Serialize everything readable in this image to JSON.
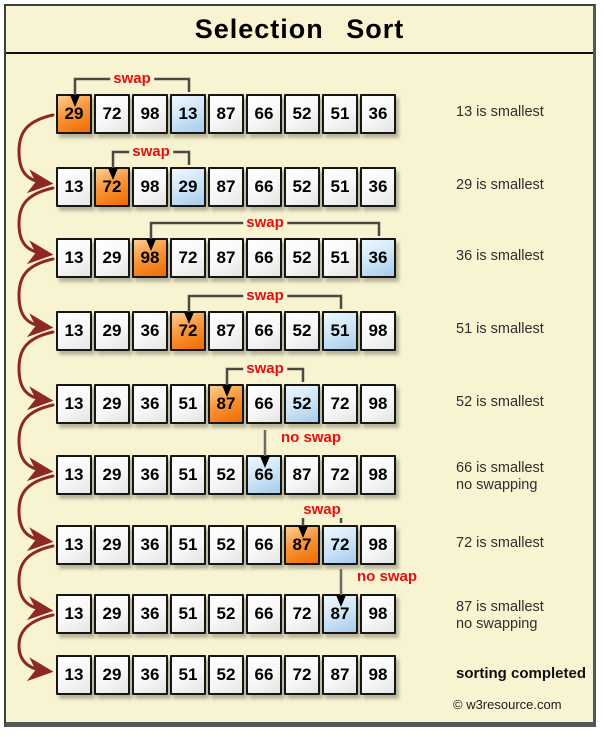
{
  "title": "Selection Sort",
  "footer": {
    "copyright": "© w3resource.com"
  },
  "labels": {
    "swap": "swap",
    "no_swap": "no swap"
  },
  "colors": {
    "background": "#f8f4d2",
    "swap_text_red": "#e50f0f",
    "bracket_gray": "#4a4a42",
    "connector_maroon": "#8e2823",
    "cell_orange": "#ef6a00",
    "cell_blue": "#a6cbec",
    "cell_border": "#161616"
  },
  "rows": [
    {
      "values": [
        "29",
        "72",
        "98",
        "13",
        "87",
        "66",
        "52",
        "51",
        "36"
      ],
      "orange": 0,
      "blue": 3,
      "action": "swap",
      "swap_from": 0,
      "swap_to": 3,
      "label": "13 is smallest"
    },
    {
      "values": [
        "13",
        "72",
        "98",
        "29",
        "87",
        "66",
        "52",
        "51",
        "36"
      ],
      "orange": 1,
      "blue": 3,
      "action": "swap",
      "swap_from": 1,
      "swap_to": 3,
      "label": "29 is smallest"
    },
    {
      "values": [
        "13",
        "29",
        "98",
        "72",
        "87",
        "66",
        "52",
        "51",
        "36"
      ],
      "orange": 2,
      "blue": 8,
      "action": "swap",
      "swap_from": 2,
      "swap_to": 8,
      "label": "36 is smallest"
    },
    {
      "values": [
        "13",
        "29",
        "36",
        "72",
        "87",
        "66",
        "52",
        "51",
        "98"
      ],
      "orange": 3,
      "blue": 7,
      "action": "swap",
      "swap_from": 3,
      "swap_to": 7,
      "label": "51 is smallest"
    },
    {
      "values": [
        "13",
        "29",
        "36",
        "51",
        "87",
        "66",
        "52",
        "72",
        "98"
      ],
      "orange": 4,
      "blue": 6,
      "action": "swap",
      "swap_from": 4,
      "swap_to": 6,
      "label": "52 is smallest"
    },
    {
      "values": [
        "13",
        "29",
        "36",
        "51",
        "52",
        "66",
        "87",
        "72",
        "98"
      ],
      "blue": 5,
      "action": "no_swap",
      "no_swap_at": 5,
      "label": "66 is smallest",
      "label2": "no swapping"
    },
    {
      "values": [
        "13",
        "29",
        "36",
        "51",
        "52",
        "66",
        "87",
        "72",
        "98"
      ],
      "orange": 6,
      "blue": 7,
      "action": "swap",
      "swap_from": 6,
      "swap_to": 7,
      "label": "72 is smallest"
    },
    {
      "values": [
        "13",
        "29",
        "36",
        "51",
        "52",
        "66",
        "72",
        "87",
        "98"
      ],
      "blue": 7,
      "action": "no_swap",
      "no_swap_at": 7,
      "label": "87 is smallest",
      "label2": "no swapping"
    },
    {
      "values": [
        "13",
        "29",
        "36",
        "51",
        "52",
        "66",
        "72",
        "87",
        "98"
      ],
      "action": "none",
      "label": "sorting completed",
      "label_bold": true
    }
  ]
}
